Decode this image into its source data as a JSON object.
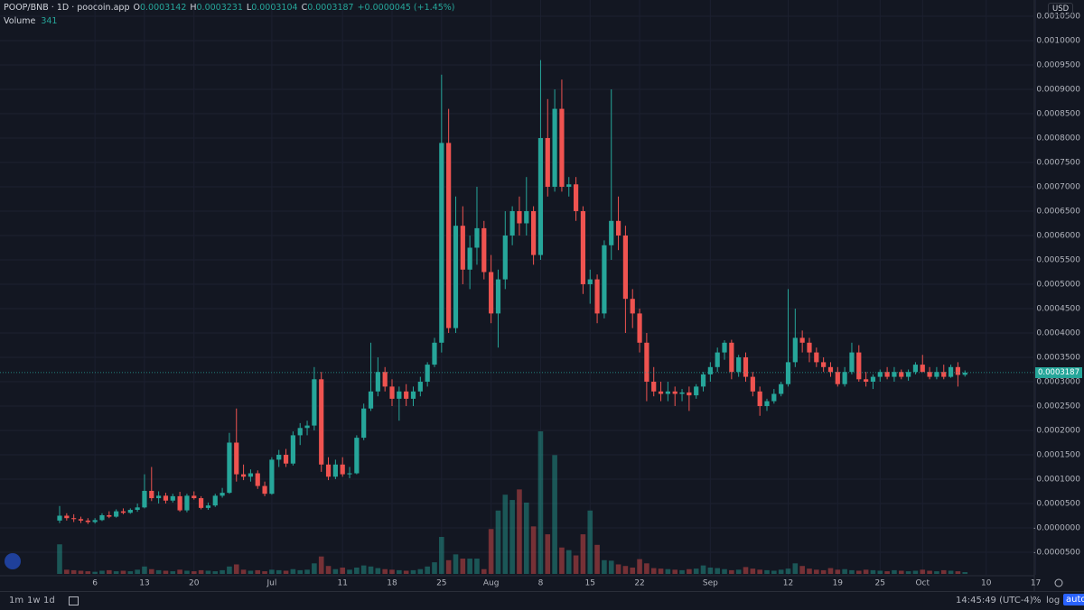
{
  "header": {
    "symbol": "POOP/BNB · 1D · poocoin.app",
    "legend": [
      {
        "key": "O",
        "value": "0.0003142"
      },
      {
        "key": "H",
        "value": "0.0003231"
      },
      {
        "key": "L",
        "value": "0.0003104"
      },
      {
        "key": "C",
        "value": "0.0003187"
      }
    ],
    "change": "+0.0000045 (+1.45%)",
    "volume_label": "Volume"
  },
  "ui": {
    "currency": "USD",
    "timeframes": [
      "1m",
      "1w",
      "1d"
    ],
    "clock": "14:45:49 (UTC-4)",
    "scale_buttons": [
      "%",
      "log",
      "auto"
    ]
  },
  "chart_data": {
    "type": "candlestick",
    "up_color": "#26a69a",
    "down_color": "#ef5350",
    "grid": true,
    "ylim": [
      -9.63e-05,
      0.0010833
    ],
    "yticks": [
      {
        "value": -5e-05,
        "label": "-0.0000500"
      },
      {
        "value": 0,
        "label": "-0.0000000"
      },
      {
        "value": 5e-05,
        "label": "0.0000500"
      },
      {
        "value": 0.0001,
        "label": "0.0001000"
      },
      {
        "value": 0.00015,
        "label": "0.0001500"
      },
      {
        "value": 0.0002,
        "label": "0.0002000"
      },
      {
        "value": 0.00025,
        "label": "0.0002500"
      },
      {
        "value": 0.0003,
        "label": "0.0003000"
      },
      {
        "value": 0.00035,
        "label": "0.0003500"
      },
      {
        "value": 0.0004,
        "label": "0.0004000"
      },
      {
        "value": 0.00045,
        "label": "0.0004500"
      },
      {
        "value": 0.0005,
        "label": "0.0005000"
      },
      {
        "value": 0.00055,
        "label": "0.0005500"
      },
      {
        "value": 0.0006,
        "label": "0.0006000"
      },
      {
        "value": 0.00065,
        "label": "0.0006500"
      },
      {
        "value": 0.0007,
        "label": "0.0007000"
      },
      {
        "value": 0.00075,
        "label": "0.0007500"
      },
      {
        "value": 0.0008,
        "label": "0.0008000"
      },
      {
        "value": 0.00085,
        "label": "0.0008500"
      },
      {
        "value": 0.0009,
        "label": "0.0009000"
      },
      {
        "value": 0.00095,
        "label": "0.0009500"
      },
      {
        "value": 0.001,
        "label": "0.0010000"
      },
      {
        "value": 0.00105,
        "label": "0.0010500"
      }
    ],
    "categories": [
      null,
      null,
      null,
      null,
      null,
      "6",
      null,
      null,
      null,
      null,
      null,
      null,
      "13",
      null,
      null,
      null,
      null,
      null,
      null,
      "20",
      null,
      null,
      null,
      null,
      null,
      null,
      null,
      null,
      null,
      null,
      "Jul",
      null,
      null,
      null,
      null,
      null,
      null,
      null,
      null,
      null,
      "11",
      null,
      null,
      null,
      null,
      null,
      null,
      "18",
      null,
      null,
      null,
      null,
      null,
      null,
      "25",
      null,
      null,
      null,
      null,
      null,
      null,
      "Aug",
      null,
      null,
      null,
      null,
      null,
      null,
      "8",
      null,
      null,
      null,
      null,
      null,
      null,
      "15",
      null,
      null,
      null,
      null,
      null,
      null,
      "22",
      null,
      null,
      null,
      null,
      null,
      null,
      null,
      null,
      null,
      "Sep",
      null,
      null,
      null,
      null,
      null,
      null,
      null,
      null,
      null,
      null,
      "12",
      null,
      null,
      null,
      null,
      null,
      null,
      "19",
      null,
      null,
      null,
      null,
      null,
      "25",
      null,
      null,
      null,
      null,
      null,
      "Oct",
      null,
      null,
      null,
      null,
      null,
      null,
      null,
      null,
      "10",
      null,
      null,
      null,
      null,
      null,
      null,
      "17"
    ],
    "open": [
      1.5e-05,
      2.5e-05,
      2e-05,
      1.8e-05,
      1.5e-05,
      1.2e-05,
      1.6e-05,
      2.6e-05,
      2.3e-05,
      3.4e-05,
      3.1e-05,
      3.7e-05,
      4.2e-05,
      7.6e-05,
      6.1e-05,
      6.6e-05,
      5.6e-05,
      6.5e-05,
      3.6e-05,
      6.6e-05,
      6.1e-05,
      4.1e-05,
      4.6e-05,
      6.6e-05,
      7.2e-05,
      0.000175,
      0.00011,
      0.000105,
      0.000112,
      8.6e-05,
      7e-05,
      0.00014,
      0.00015,
      0.000132,
      0.00019,
      0.000205,
      0.00021,
      0.000305,
      0.00013,
      0.000105,
      0.00013,
      0.00011,
      0.000112,
      0.000185,
      0.000245,
      0.00028,
      0.00032,
      0.00029,
      0.000265,
      0.00028,
      0.000265,
      0.00028,
      0.0003,
      0.000335,
      0.00038,
      0.00079,
      0.00041,
      0.00062,
      0.00053,
      0.000575,
      0.000615,
      0.000525,
      0.00044,
      0.00051,
      0.0006,
      0.00065,
      0.000625,
      0.00065,
      0.00056,
      0.0008,
      0.0007,
      0.00086,
      0.0007,
      0.000705,
      0.00065,
      0.0005,
      0.00051,
      0.00044,
      0.00058,
      0.00063,
      0.0006,
      0.00047,
      0.00044,
      0.00038,
      0.0003,
      0.00028,
      0.000275,
      0.00028,
      0.000275,
      0.000278,
      0.000272,
      0.00029,
      0.000315,
      0.00033,
      0.00036,
      0.00038,
      0.00032,
      0.00035,
      0.00031,
      0.00028,
      0.00025,
      0.00026,
      0.000275,
      0.000295,
      0.00034,
      0.00039,
      0.00038,
      0.00036,
      0.00034,
      0.00033,
      0.00032,
      0.000295,
      0.00032,
      0.00036,
      0.000305,
      0.0003,
      0.00031,
      0.00032,
      0.00031,
      0.00032,
      0.00031,
      0.00032,
      0.000335,
      0.00032,
      0.00031,
      0.00032,
      0.00031,
      0.00033,
      0.0003142,
      null,
      null,
      null,
      null,
      null,
      null,
      null,
      null,
      null,
      null
    ],
    "high": [
      4.5e-05,
      3e-05,
      2.8e-05,
      2.3e-05,
      2e-05,
      2e-05,
      3e-05,
      3.4e-05,
      3.8e-05,
      4e-05,
      4e-05,
      5e-05,
      0.00011,
      0.000125,
      7.5e-05,
      7.2e-05,
      7e-05,
      7.4e-05,
      7e-05,
      7.5e-05,
      6.5e-05,
      5.2e-05,
      7e-05,
      8.2e-05,
      0.000195,
      0.000245,
      0.00013,
      0.00012,
      0.000118,
      9.5e-05,
      0.000145,
      0.00016,
      0.000162,
      0.000198,
      0.000215,
      0.00022,
      0.00033,
      0.00032,
      0.000145,
      0.00014,
      0.000145,
      0.000125,
      0.00019,
      0.000255,
      0.00038,
      0.00035,
      0.00033,
      0.000305,
      0.00029,
      0.000295,
      0.00029,
      0.00031,
      0.00034,
      0.00039,
      0.00093,
      0.00086,
      0.00068,
      0.00066,
      0.0006,
      0.0007,
      0.00063,
      0.00056,
      0.00053,
      0.00065,
      0.00066,
      0.00068,
      0.00072,
      0.00066,
      0.00096,
      0.00088,
      0.0009,
      0.00092,
      0.00072,
      0.00072,
      0.00066,
      0.00053,
      0.00052,
      0.00059,
      0.0009,
      0.00068,
      0.00062,
      0.00049,
      0.00045,
      0.0004,
      0.00033,
      0.0003,
      0.0003,
      0.00029,
      0.000285,
      0.00029,
      0.000295,
      0.00032,
      0.00034,
      0.00037,
      0.000385,
      0.000386,
      0.000355,
      0.00036,
      0.00032,
      0.00029,
      0.000265,
      0.000285,
      0.0003,
      0.00049,
      0.00045,
      0.000405,
      0.00039,
      0.00037,
      0.00035,
      0.00034,
      0.00033,
      0.00033,
      0.00038,
      0.000375,
      0.00032,
      0.000315,
      0.000325,
      0.00033,
      0.00033,
      0.000325,
      0.000325,
      0.00034,
      0.000355,
      0.00033,
      0.00033,
      0.000335,
      0.000335,
      0.00034,
      0.0003231,
      null,
      null,
      null,
      null,
      null,
      null,
      null,
      null,
      null,
      null
    ],
    "low": [
      1e-05,
      1.5e-05,
      1.2e-05,
      1e-05,
      8e-06,
      9e-06,
      1.4e-05,
      2e-05,
      2.1e-05,
      2.8e-05,
      2.9e-05,
      3.3e-05,
      4e-05,
      5.5e-05,
      5e-05,
      5e-05,
      5.2e-05,
      3.3e-05,
      3.2e-05,
      5.8e-05,
      3.8e-05,
      3.7e-05,
      4.3e-05,
      6.2e-05,
      7e-05,
      9.5e-05,
      9.8e-05,
      9.5e-05,
      8e-05,
      6.5e-05,
      6.8e-05,
      0.000125,
      0.000125,
      0.000128,
      0.00017,
      0.00019,
      0.0002,
      0.000115,
      9.8e-05,
      0.0001,
      0.000105,
      0.000102,
      0.00011,
      0.00018,
      0.00024,
      0.00027,
      0.00028,
      0.00025,
      0.00022,
      0.00025,
      0.00025,
      0.00027,
      0.00029,
      0.00033,
      0.00036,
      0.0004,
      0.0004,
      0.0005,
      0.00049,
      0.00054,
      0.00051,
      0.00042,
      0.00037,
      0.00049,
      0.00058,
      0.0006,
      0.0006,
      0.00054,
      0.00055,
      0.00068,
      0.00069,
      0.00069,
      0.00068,
      0.00063,
      0.00048,
      0.00046,
      0.00042,
      0.00043,
      0.00055,
      0.00057,
      0.0004,
      0.00041,
      0.00036,
      0.00026,
      0.00027,
      0.00026,
      0.00026,
      0.00025,
      0.00026,
      0.00024,
      0.000265,
      0.00028,
      0.0003,
      0.00032,
      0.000345,
      0.000305,
      0.00031,
      0.0003,
      0.00027,
      0.00023,
      0.00024,
      0.000255,
      0.00027,
      0.00029,
      0.00033,
      0.00036,
      0.00034,
      0.00033,
      0.00032,
      0.00031,
      0.00029,
      0.00029,
      0.000315,
      0.0003,
      0.00029,
      0.000285,
      0.0003,
      0.000305,
      0.0003,
      0.000305,
      0.000302,
      0.000315,
      0.00032,
      0.000305,
      0.000305,
      0.000305,
      0.000308,
      0.00029,
      0.0003104,
      null,
      null,
      null,
      null,
      null,
      null,
      null,
      null,
      null,
      null
    ],
    "close": [
      2.5e-05,
      2e-05,
      1.8e-05,
      1.5e-05,
      1.2e-05,
      1.6e-05,
      2.6e-05,
      2.3e-05,
      3.4e-05,
      3.1e-05,
      3.7e-05,
      4.2e-05,
      7.6e-05,
      6.1e-05,
      6.6e-05,
      5.6e-05,
      6.5e-05,
      3.6e-05,
      6.6e-05,
      6.1e-05,
      4.1e-05,
      4.6e-05,
      6.6e-05,
      7.2e-05,
      0.000175,
      0.00011,
      0.000105,
      0.000112,
      8.6e-05,
      7e-05,
      0.00014,
      0.00015,
      0.000132,
      0.00019,
      0.000205,
      0.00021,
      0.000305,
      0.00013,
      0.000105,
      0.00013,
      0.00011,
      0.000112,
      0.000185,
      0.000245,
      0.00028,
      0.00032,
      0.00029,
      0.000265,
      0.00028,
      0.000265,
      0.00028,
      0.0003,
      0.000335,
      0.00038,
      0.00079,
      0.00041,
      0.00062,
      0.00053,
      0.000575,
      0.000615,
      0.000525,
      0.00044,
      0.00051,
      0.0006,
      0.00065,
      0.000625,
      0.00065,
      0.00056,
      0.0008,
      0.0007,
      0.00086,
      0.0007,
      0.000705,
      0.00065,
      0.0005,
      0.00051,
      0.00044,
      0.00058,
      0.00063,
      0.0006,
      0.00047,
      0.00044,
      0.00038,
      0.0003,
      0.00028,
      0.000275,
      0.00028,
      0.000275,
      0.000278,
      0.000272,
      0.00029,
      0.000315,
      0.00033,
      0.00036,
      0.00038,
      0.00032,
      0.00035,
      0.00031,
      0.00028,
      0.00025,
      0.00026,
      0.000275,
      0.000295,
      0.00034,
      0.00039,
      0.00038,
      0.00036,
      0.00034,
      0.00033,
      0.00032,
      0.000295,
      0.00032,
      0.00036,
      0.000305,
      0.0003,
      0.00031,
      0.00032,
      0.00031,
      0.00032,
      0.00031,
      0.00032,
      0.000335,
      0.00032,
      0.00031,
      0.00032,
      0.00031,
      0.00033,
      0.000314,
      0.0003187,
      null,
      null,
      null,
      null,
      null,
      null,
      null,
      null,
      null,
      null
    ],
    "volume": [
      5600,
      800,
      700,
      600,
      500,
      400,
      600,
      700,
      500,
      600,
      500,
      800,
      1400,
      900,
      700,
      600,
      500,
      800,
      600,
      500,
      700,
      600,
      500,
      700,
      1400,
      1800,
      800,
      600,
      700,
      500,
      800,
      700,
      600,
      900,
      700,
      800,
      2000,
      3300,
      1500,
      900,
      1200,
      800,
      1200,
      1600,
      1400,
      1100,
      900,
      800,
      700,
      600,
      700,
      900,
      1400,
      2200,
      7000,
      2600,
      3700,
      2900,
      2900,
      2900,
      900,
      8500,
      12000,
      15000,
      14000,
      16000,
      13500,
      9000,
      27000,
      7500,
      22500,
      5000,
      4500,
      3500,
      7500,
      12000,
      5500,
      2600,
      2500,
      1800,
      1500,
      1200,
      2800,
      2000,
      1100,
      1000,
      900,
      800,
      700,
      900,
      1000,
      1600,
      1200,
      1100,
      900,
      700,
      800,
      1300,
      1000,
      800,
      700,
      600,
      800,
      1000,
      2000,
      1500,
      1000,
      800,
      700,
      1100,
      800,
      900,
      700,
      600,
      800,
      700,
      600,
      500,
      700,
      600,
      500,
      600,
      800,
      600,
      500,
      700,
      600,
      500,
      341,
      null,
      null,
      null,
      null,
      null,
      null,
      null,
      null,
      null,
      null
    ]
  }
}
